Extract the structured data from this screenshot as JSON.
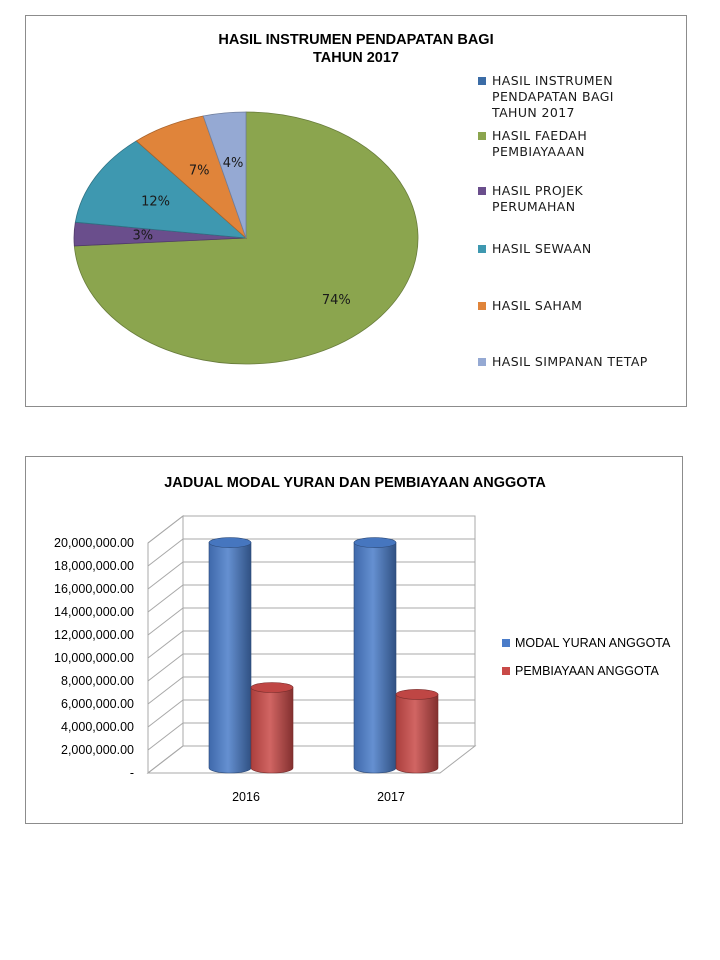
{
  "chart_data": [
    {
      "type": "pie",
      "title_lines": [
        "HASIL INSTRUMEN PENDAPATAN  BAGI",
        "TAHUN 2017"
      ],
      "legend_position": "right",
      "legend": [
        {
          "name_lines": [
            "HASIL INSTRUMEN",
            "PENDAPATAN BAGI",
            "TAHUN 2017"
          ],
          "color": "#3B6CA6"
        },
        {
          "name_lines": [
            "HASIL FAEDAH",
            "PEMBIAYAAAN"
          ],
          "color": "#8BA54E"
        },
        {
          "name_lines": [
            "HASIL PROJEK",
            "PERUMAHAN"
          ],
          "color": "#6A4E8C"
        },
        {
          "name_lines": [
            "HASIL SEWAAN"
          ],
          "color": "#3E98B0"
        },
        {
          "name_lines": [
            "HASIL SAHAM"
          ],
          "color": "#E0843A"
        },
        {
          "name_lines": [
            "HASIL SIMPANAN TETAP"
          ],
          "color": "#95A9D3"
        }
      ],
      "slices": [
        {
          "value": 74,
          "label": "74%",
          "color": "#8BA54E"
        },
        {
          "value": 3,
          "label": "3%",
          "color": "#6A4E8C"
        },
        {
          "value": 12,
          "label": "12%",
          "color": "#3E98B0"
        },
        {
          "value": 7,
          "label": "7%",
          "color": "#E0843A"
        },
        {
          "value": 4,
          "label": "4%",
          "color": "#95A9D3"
        }
      ]
    },
    {
      "type": "bar",
      "style": "3d-cylinder",
      "title": "JADUAL MODAL YURAN DAN PEMBIAYAAN ANGGOTA",
      "categories": [
        "2016",
        "2017"
      ],
      "ylim": [
        0,
        20000000
      ],
      "y_ticks": [
        {
          "value": 0,
          "label": "-"
        },
        {
          "value": 2000000,
          "label": "2,000,000.00"
        },
        {
          "value": 4000000,
          "label": "4,000,000.00"
        },
        {
          "value": 6000000,
          "label": "6,000,000.00"
        },
        {
          "value": 8000000,
          "label": "8,000,000.00"
        },
        {
          "value": 10000000,
          "label": "10,000,000.00"
        },
        {
          "value": 12000000,
          "label": "12,000,000.00"
        },
        {
          "value": 14000000,
          "label": "14,000,000.00"
        },
        {
          "value": 16000000,
          "label": "16,000,000.00"
        },
        {
          "value": 18000000,
          "label": "18,000,000.00"
        },
        {
          "value": 20000000,
          "label": "20,000,000.00"
        }
      ],
      "grid": true,
      "legend_position": "right",
      "series": [
        {
          "name": "MODAL YURAN ANGGOTA",
          "values": [
            19600000,
            19600000
          ],
          "color": "#4A7CC9"
        },
        {
          "name": "PEMBIAYAAN ANGGOTA",
          "values": [
            7000000,
            6400000
          ],
          "color": "#C94A48"
        }
      ]
    }
  ]
}
